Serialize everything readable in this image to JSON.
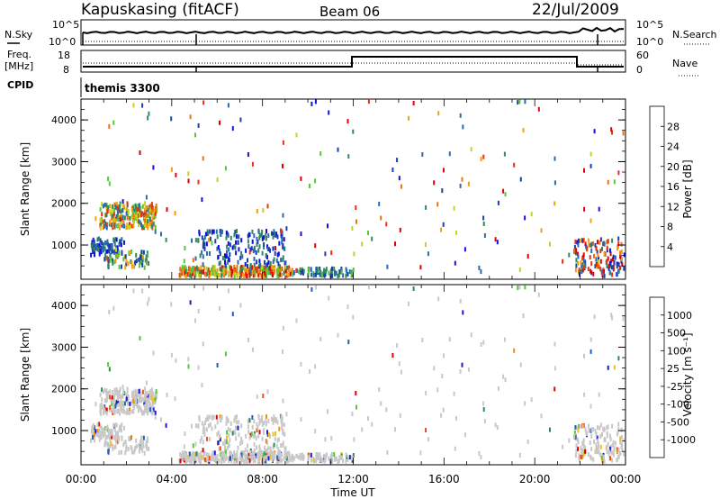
{
  "header": {
    "station": "Kapuskasing (fitACF)",
    "beam": "Beam 06",
    "date": "22/Jul/2009"
  },
  "noise_panel": {
    "left_label": "N.Sky",
    "right_label": "N.Search",
    "left_ticks": [
      "10^5",
      "10^0"
    ],
    "right_ticks": [
      "10^5",
      "10^0"
    ]
  },
  "freq_panel": {
    "left_label": "Freq.",
    "left_unit": "[MHz]",
    "right_label": "Nave",
    "left_ticks": [
      "18",
      "8"
    ],
    "right_ticks": [
      "60",
      "0"
    ]
  },
  "cpid": {
    "label": "CPID",
    "value": "themis 3300"
  },
  "chart_data": [
    {
      "type": "heatmap",
      "name": "power",
      "ylabel": "Slant Range [km]",
      "xlabel": "",
      "colorbar_label": "Power [dB]",
      "ylim": [
        180,
        4500
      ],
      "y_ticks": [
        "4000",
        "3000",
        "2000",
        "1000"
      ],
      "x_ticks": [],
      "colorbar_ticks": [
        "28",
        "24",
        "20",
        "16",
        "12",
        "8",
        "4"
      ],
      "colors": [
        "#1010e0",
        "#1a3fa8",
        "#2a6ab0",
        "#2e8a5e",
        "#52c83a",
        "#c8d020",
        "#f0a010",
        "#f07010",
        "#e83010",
        "#e00000"
      ]
    },
    {
      "type": "heatmap",
      "name": "velocity",
      "ylabel": "Slant Range [km]",
      "xlabel": "Time UT",
      "colorbar_label": "Velocity [m s⁻¹]",
      "ylim": [
        180,
        4500
      ],
      "y_ticks": [
        "4000",
        "3000",
        "2000",
        "1000"
      ],
      "x_ticks": [
        "00:00",
        "04:00",
        "08:00",
        "12:00",
        "16:00",
        "20:00",
        "00:00"
      ],
      "colorbar_ticks": [
        "1000",
        "500",
        "100",
        "25",
        "-25",
        "-100",
        "-500",
        "-1000"
      ],
      "colors": [
        "#1a1acc",
        "#2060b8",
        "#2e8a5e",
        "#52c83a",
        "#c8c8c8",
        "#c8c8c8",
        "#f0c020",
        "#f09010",
        "#f05010",
        "#e00000"
      ]
    }
  ]
}
